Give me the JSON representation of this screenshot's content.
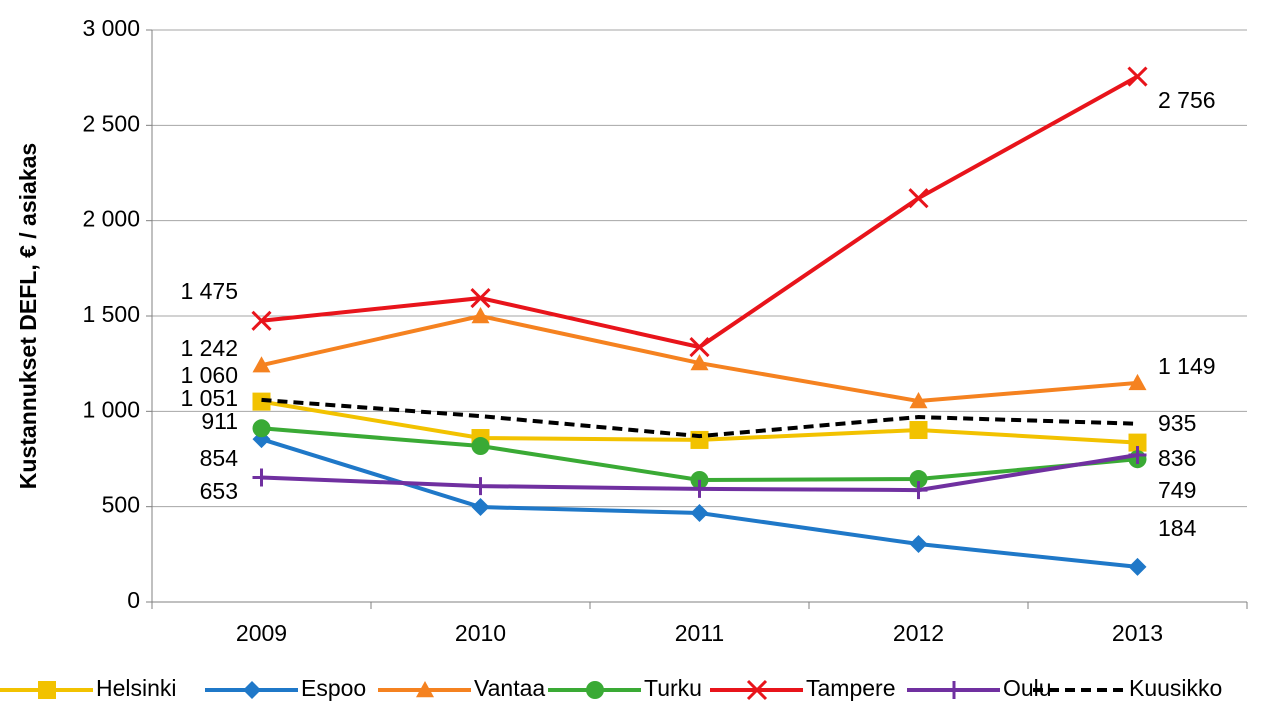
{
  "chart_data": {
    "type": "line",
    "y_label": "Kustannukset DEFL, € / asiakas",
    "categories": [
      "2009",
      "2010",
      "2011",
      "2012",
      "2013"
    ],
    "ylim": [
      0,
      3000
    ],
    "yticks": [
      0,
      500,
      {
        "value": 1000,
        "label": "1 000"
      },
      {
        "value": 1500,
        "label": "1 500"
      },
      {
        "value": 2000,
        "label": "2 000"
      },
      {
        "value": 2500,
        "label": "2 500"
      },
      {
        "value": 3000,
        "label": "3 000"
      }
    ],
    "grid": true,
    "legend": "bottom",
    "series": [
      {
        "name": "Helsinki",
        "color": "#f2c200",
        "marker": "square",
        "values": [
          1051,
          860,
          850,
          902,
          836
        ],
        "value_labels": [
          "1 051",
          null,
          null,
          null,
          "836"
        ]
      },
      {
        "name": "Espoo",
        "color": "#1f78c8",
        "marker": "diamond",
        "values": [
          854,
          498,
          467,
          304,
          184
        ],
        "value_labels": [
          "854",
          null,
          null,
          null,
          "184"
        ]
      },
      {
        "name": "Vantaa",
        "color": "#f58220",
        "marker": "triangle",
        "values": [
          1242,
          1500,
          1253,
          1054,
          1149
        ],
        "value_labels": [
          "1 242",
          null,
          null,
          null,
          "1 149"
        ]
      },
      {
        "name": "Turku",
        "color": "#3aaa35",
        "marker": "circle",
        "values": [
          911,
          818,
          640,
          645,
          749
        ],
        "value_labels": [
          "911",
          null,
          null,
          null,
          "749"
        ]
      },
      {
        "name": "Tampere",
        "color": "#e8141b",
        "marker": "x",
        "values": [
          1475,
          1594,
          1337,
          2118,
          2756
        ],
        "value_labels": [
          "1 475",
          null,
          null,
          null,
          "2 756"
        ]
      },
      {
        "name": "Oulu",
        "color": "#7030a0",
        "marker": "plus",
        "values": [
          653,
          608,
          593,
          587,
          771
        ],
        "value_labels": [
          "653",
          null,
          null,
          null,
          null
        ]
      },
      {
        "name": "Kuusikko",
        "color": "#000000",
        "marker": "none",
        "dashed": true,
        "values": [
          1060,
          975,
          870,
          970,
          935
        ],
        "value_labels": [
          "1 060",
          null,
          null,
          null,
          "935"
        ]
      }
    ]
  }
}
